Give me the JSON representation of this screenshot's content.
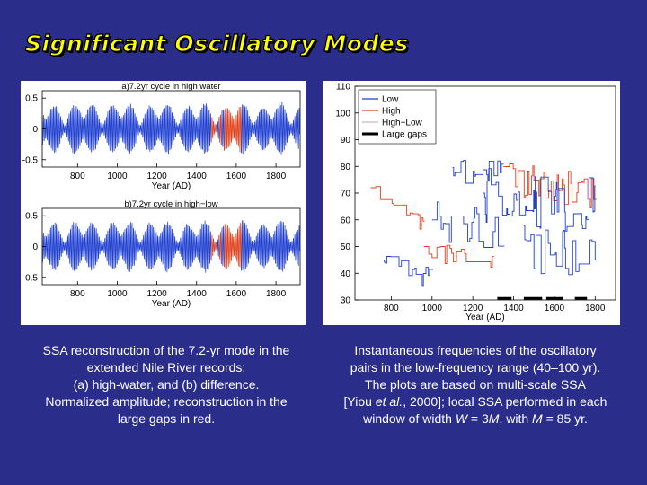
{
  "slide": {
    "title": "Significant Oscillatory Modes"
  },
  "colors": {
    "background": "#2b2d8a",
    "title": "#ffff00",
    "low": "#1f3fd0",
    "high": "#e0401a",
    "high_low": "#f0f0f0",
    "gaps": "#000000",
    "reconstruction": "#1f3fd0",
    "gap_reconstruction": "#e0401a"
  },
  "chart_data": [
    {
      "type": "line",
      "title": "a)7.2yr cycle in high water",
      "xlabel": "Year (AD)",
      "ylabel": "",
      "xlim": [
        622,
        1922
      ],
      "ylim": [
        -0.62,
        0.62
      ],
      "xticks": [
        "800",
        "1000",
        "1200",
        "1400",
        "1600",
        "1800"
      ],
      "yticks": [
        "0.5",
        "0",
        "-0.5"
      ],
      "series": [
        {
          "description": "7.2-yr oscillation, normalized amplitude",
          "color": "#1f3fd0"
        },
        {
          "description": "reconstruction in large gaps",
          "color": "#e0401a"
        }
      ],
      "gap_intervals": [
        [
          1475,
          1500
        ],
        [
          1515,
          1525
        ],
        [
          1540,
          1625
        ]
      ]
    },
    {
      "type": "line",
      "title": "b)7.2yr cycle in high−low",
      "xlabel": "Year (AD)",
      "ylabel": "",
      "xlim": [
        622,
        1922
      ],
      "ylim": [
        -0.62,
        0.62
      ],
      "xticks": [
        "800",
        "1000",
        "1200",
        "1400",
        "1600",
        "1800"
      ],
      "yticks": [
        "0.5",
        "0",
        "-0.5"
      ],
      "series": [
        {
          "description": "7.2-yr oscillation in difference series",
          "color": "#1f3fd0"
        },
        {
          "description": "reconstruction in large gaps",
          "color": "#e0401a"
        }
      ],
      "gap_intervals": [
        [
          1475,
          1500
        ],
        [
          1515,
          1525
        ],
        [
          1540,
          1625
        ]
      ]
    },
    {
      "type": "line",
      "title": "",
      "xlabel": "Year (AD)",
      "ylabel": "",
      "xlim": [
        622,
        1900
      ],
      "ylim": [
        30,
        110
      ],
      "xticks": [
        "800",
        "1000",
        "1200",
        "1400",
        "1600",
        "1800"
      ],
      "yticks": [
        "110",
        "100",
        "90",
        "80",
        "70",
        "60",
        "50",
        "40",
        "30"
      ],
      "legend_position": "top-left",
      "series": [
        {
          "name": "Low",
          "color": "#1f3fd0"
        },
        {
          "name": "High",
          "color": "#e0401a"
        },
        {
          "name": "High−Low",
          "color": "#f0f0f0"
        },
        {
          "name": "Large gaps",
          "color": "#000000"
        }
      ],
      "gap_segments": [
        [
          1320,
          1390
        ],
        [
          1450,
          1540
        ],
        [
          1560,
          1640
        ],
        [
          1700,
          1760
        ]
      ]
    }
  ],
  "captions": {
    "left": [
      "SSA reconstruction of the 7.2-yr mode in the",
      "extended Nile River records:",
      "(a) high-water, and (b) difference.",
      "Normalized amplitude; reconstruction in the",
      "large gaps in red."
    ],
    "right": {
      "line1": "Instantaneous frequencies of the oscillatory",
      "line2": "pairs in the low-frequency range (40–100 yr).",
      "line3": "The plots are based on multi-scale SSA",
      "line4_pre": "[Yiou ",
      "line4_em": "et al.",
      "line4_post": ", 2000]; local SSA performed in each",
      "line5_pre": "window of width ",
      "line5_W": "W",
      "line5_mid": " = 3",
      "line5_M": "M",
      "line5_mid2": ", with ",
      "line5_M2": "M",
      "line5_post": " = 85 yr."
    }
  }
}
